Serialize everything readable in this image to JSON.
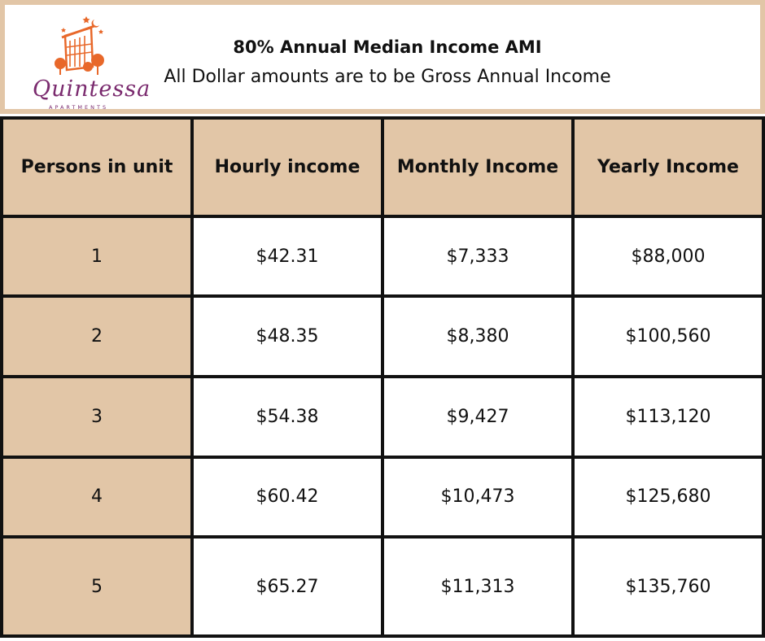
{
  "header": {
    "title": "80% Annual Median Income AMI",
    "subtitle": "All Dollar amounts are to be Gross Annual Income",
    "logo": {
      "name": "Quintessa",
      "tagline": "APARTMENTS",
      "icon": "building-logo-icon",
      "brand_color": "#7a2a6e",
      "accent_color": "#e8682a"
    }
  },
  "table": {
    "header_color": "#e2c6a7",
    "columns": [
      "Persons in unit",
      "Hourly income",
      "Monthly Income",
      "Yearly Income"
    ],
    "rows": [
      {
        "persons": "1",
        "hourly": "$42.31",
        "monthly": "$7,333",
        "yearly": "$88,000"
      },
      {
        "persons": "2",
        "hourly": "$48.35",
        "monthly": "$8,380",
        "yearly": "$100,560"
      },
      {
        "persons": "3",
        "hourly": "$54.38",
        "monthly": "$9,427",
        "yearly": "$113,120"
      },
      {
        "persons": "4",
        "hourly": "$60.42",
        "monthly": "$10,473",
        "yearly": "$125,680"
      },
      {
        "persons": "5",
        "hourly": "$65.27",
        "monthly": "$11,313",
        "yearly": "$135,760"
      }
    ]
  }
}
